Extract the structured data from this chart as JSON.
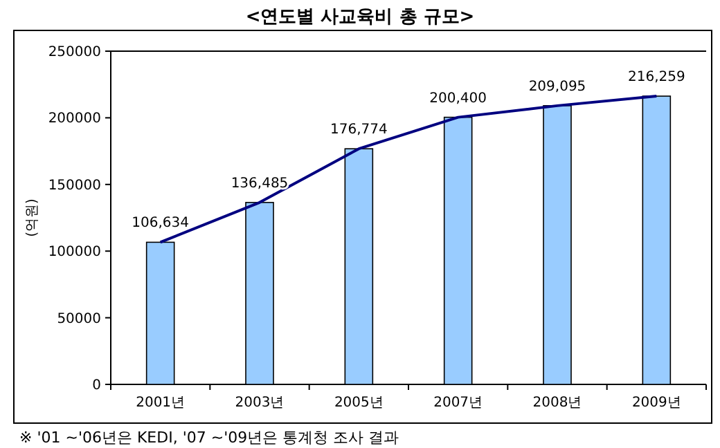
{
  "chart_data": {
    "type": "bar",
    "title": "<연도별 사교육비 총 규모>",
    "ylabel": "(억원)",
    "categories": [
      "2001년",
      "2003년",
      "2005년",
      "2007년",
      "2008년",
      "2009년"
    ],
    "series": [
      {
        "color": "#99ccff",
        "values": [
          106634,
          136485,
          176774,
          200400,
          209095,
          216259
        ]
      },
      {
        "type": "line",
        "color": "#000080",
        "values": [
          106634,
          136485,
          176774,
          200400,
          209095,
          216259
        ],
        "value_labels": [
          "106,634",
          "136,485",
          "176,774",
          "200,400",
          "209,095",
          "216,259"
        ]
      }
    ],
    "ylim": [
      0,
      250000
    ],
    "yticks": [
      0,
      50000,
      100000,
      150000,
      200000,
      250000
    ],
    "grid": false,
    "marker": "none",
    "annotations": [
      "※ '01 ~'06년은 KEDI, '07 ~'09년은 통계청 조사 결과"
    ]
  }
}
